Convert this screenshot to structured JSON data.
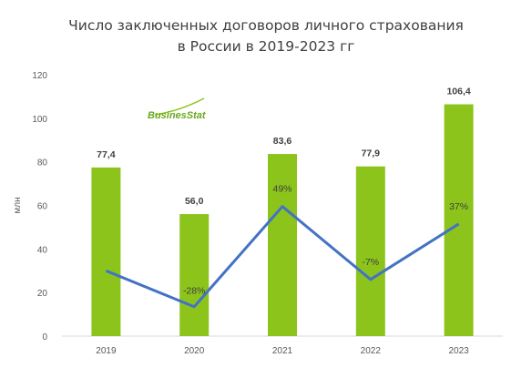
{
  "title_lines": [
    "Число заключенных договоров личного страхования",
    "в России в 2019-2023 гг"
  ],
  "logo_text": "BusinesStat",
  "chart_data": {
    "type": "bar",
    "title": "Число заключенных договоров личного страхования в России в 2019-2023 гг",
    "categories": [
      "2019",
      "2020",
      "2021",
      "2022",
      "2023"
    ],
    "series": [
      {
        "values": [
          77.4,
          56.0,
          83.6,
          77.9,
          106.4
        ],
        "color": "#8cc41c"
      },
      {
        "type": "line",
        "values": [
          null,
          -28,
          49,
          -7,
          37
        ],
        "color": "#4472c4"
      }
    ],
    "value_labels": [
      "77,4",
      "56,0",
      "83,6",
      "77,9",
      "106,4"
    ],
    "change_labels": [
      "",
      "-28%",
      "49%",
      "-7%",
      "37%"
    ],
    "line_points": [
      30,
      13.5,
      59.5,
      26,
      51.5
    ],
    "ylabel": "млн",
    "ylim": [
      0,
      120
    ],
    "yticks": [
      0,
      20,
      40,
      60,
      80,
      100,
      120
    ],
    "grid": false,
    "legend": "none"
  }
}
